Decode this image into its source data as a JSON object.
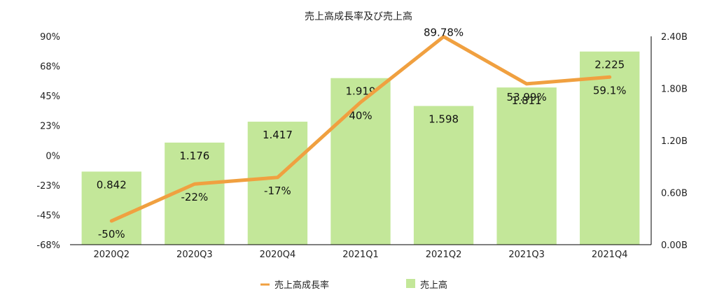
{
  "chart_data": {
    "type": "bar+line",
    "title": "売上高成長率及び売上高",
    "categories": [
      "2020Q2",
      "2020Q3",
      "2020Q4",
      "2021Q1",
      "2021Q2",
      "2021Q3",
      "2021Q4"
    ],
    "series": [
      {
        "name": "売上高",
        "type": "bar",
        "axis": "right",
        "values": [
          0.842,
          1.176,
          1.417,
          1.919,
          1.598,
          1.811,
          2.225
        ],
        "labels": [
          "0.842",
          "1.176",
          "1.417",
          "1.919",
          "1.598",
          "1.811",
          "2.225"
        ],
        "color": "#c3e799"
      },
      {
        "name": "売上高成長率",
        "type": "line",
        "axis": "left",
        "values": [
          -50,
          -22,
          -17,
          40,
          89.78,
          53.99,
          59.1
        ],
        "labels": [
          "-50%",
          "-22%",
          "-17%",
          "40%",
          "89.78%",
          "53.99%",
          "59.1%"
        ],
        "color": "#f0a040"
      }
    ],
    "left_axis": {
      "ticks": [
        "90%",
        "68%",
        "45%",
        "23%",
        "0%",
        "-23%",
        "-45%",
        "-68%"
      ],
      "ylim": [
        -68,
        90
      ]
    },
    "right_axis": {
      "ticks": [
        "2.40B",
        "1.80B",
        "1.20B",
        "0.60B",
        "0.00B"
      ],
      "ylim": [
        0,
        2.4
      ]
    },
    "legend": {
      "position": "bottom",
      "items": [
        "売上高成長率",
        "売上高"
      ]
    },
    "grid": false
  }
}
